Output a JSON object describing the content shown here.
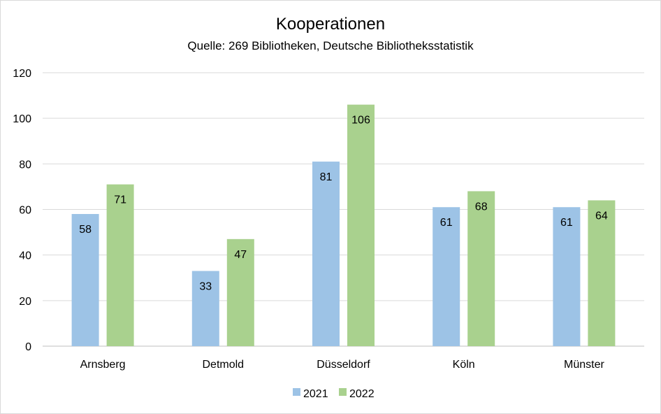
{
  "chart_data": {
    "type": "bar",
    "title": "Kooperationen",
    "subtitle": "Quelle: 269 Bibliotheken, Deutsche Bibliotheksstatistik",
    "categories": [
      "Arnsberg",
      "Detmold",
      "Düsseldorf",
      "Köln",
      "Münster"
    ],
    "series": [
      {
        "name": "2021",
        "values": [
          58,
          33,
          81,
          61,
          61
        ],
        "color": "#9dc3e6"
      },
      {
        "name": "2022",
        "values": [
          71,
          47,
          106,
          68,
          64
        ],
        "color": "#a9d18e"
      }
    ],
    "ylim": [
      0,
      120
    ],
    "yticks": [
      0,
      20,
      40,
      60,
      80,
      100,
      120
    ],
    "grid": true,
    "legend": "bottom",
    "data_labels": true
  }
}
